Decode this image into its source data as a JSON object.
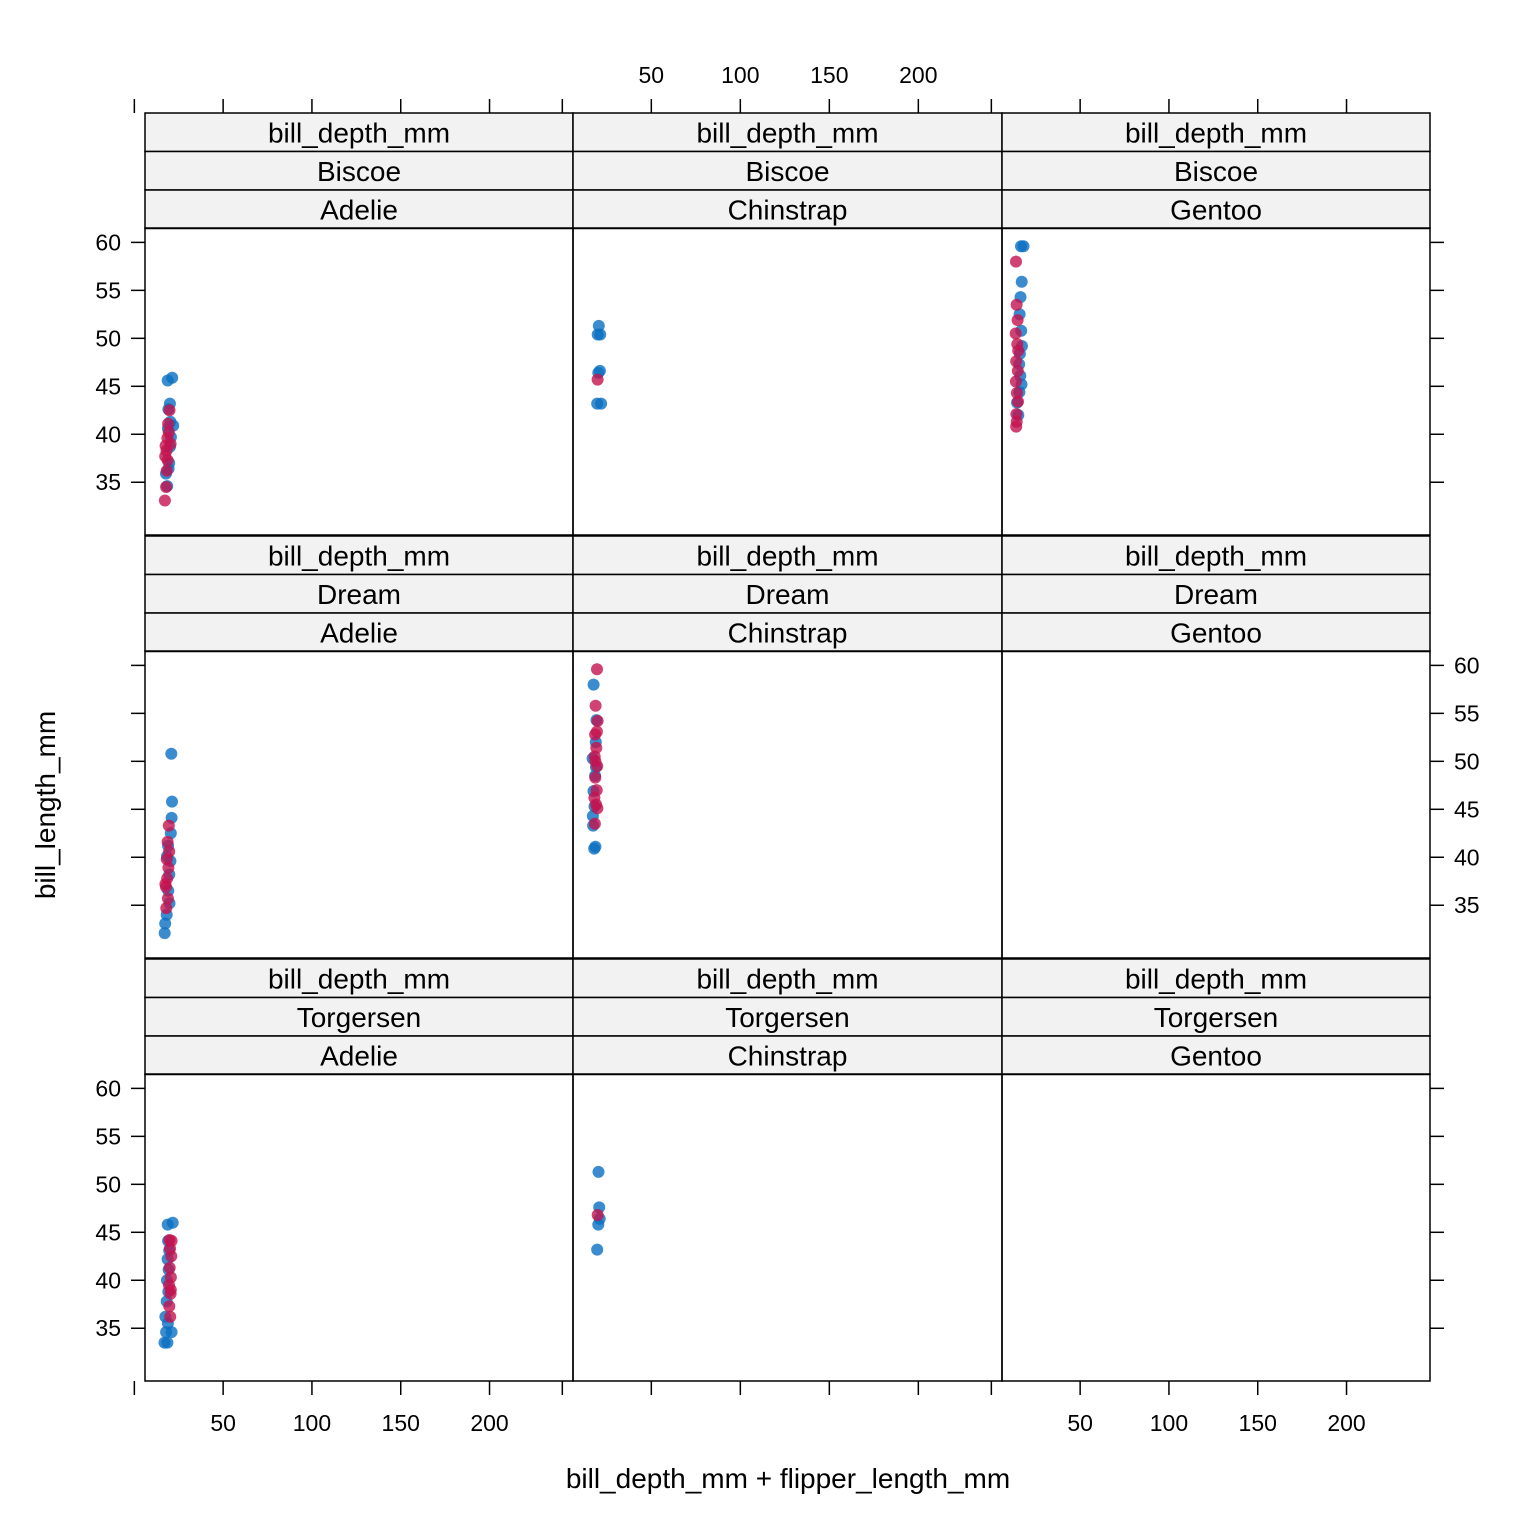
{
  "chart_data": {
    "type": "scatter",
    "xlabel": "bill_depth_mm + flipper_length_mm",
    "ylabel": "bill_length_mm",
    "x_ticks": [
      50,
      100,
      150,
      200
    ],
    "y_ticks": [
      35,
      40,
      45,
      50,
      55,
      60
    ],
    "xlim": [
      6,
      247
    ],
    "ylim": [
      29.5,
      61.5
    ],
    "strip_variable": "bill_depth_mm",
    "colors": {
      "female": "#C4134F",
      "male": "#0A6FC2",
      "strip_bg": "#F2F2F2"
    },
    "panels": [
      {
        "island": "Biscoe",
        "species": "Adelie",
        "points": [
          [
            18.5,
            34.6,
            "m"
          ],
          [
            17.8,
            35.9,
            "m"
          ],
          [
            19.6,
            37.0,
            "m"
          ],
          [
            20.1,
            38.7,
            "m"
          ],
          [
            18.9,
            40.6,
            "m"
          ],
          [
            20.3,
            41.3,
            "m"
          ],
          [
            19.2,
            42.6,
            "m"
          ],
          [
            20.0,
            43.2,
            "m"
          ],
          [
            18.8,
            45.6,
            "m"
          ],
          [
            21.3,
            45.9,
            "m"
          ],
          [
            21.9,
            40.9,
            "m"
          ],
          [
            20.6,
            39.7,
            "m"
          ],
          [
            19.3,
            36.4,
            "m"
          ],
          [
            17.2,
            33.1,
            "f"
          ],
          [
            17.9,
            34.5,
            "f"
          ],
          [
            18.3,
            36.2,
            "f"
          ],
          [
            17.4,
            37.7,
            "f"
          ],
          [
            18.1,
            38.3,
            "f"
          ],
          [
            18.6,
            39.6,
            "f"
          ],
          [
            19.4,
            40.2,
            "f"
          ],
          [
            19.0,
            41.1,
            "f"
          ],
          [
            19.8,
            42.5,
            "f"
          ],
          [
            20.4,
            39.0,
            "f"
          ],
          [
            18.7,
            37.3,
            "f"
          ],
          [
            17.6,
            38.8,
            "f"
          ]
        ]
      },
      {
        "island": "Biscoe",
        "species": "Chinstrap",
        "points": [
          [
            19.6,
            43.2,
            "m"
          ],
          [
            21.8,
            43.2,
            "m"
          ],
          [
            20.2,
            46.4,
            "m"
          ],
          [
            21.1,
            46.6,
            "m"
          ],
          [
            19.9,
            50.4,
            "m"
          ],
          [
            21.3,
            50.4,
            "m"
          ],
          [
            20.5,
            51.3,
            "m"
          ],
          [
            19.8,
            45.7,
            "f"
          ]
        ]
      },
      {
        "island": "Biscoe",
        "species": "Gentoo",
        "points": [
          [
            16.7,
            59.6,
            "m"
          ],
          [
            18.1,
            59.6,
            "m"
          ],
          [
            17.1,
            55.9,
            "m"
          ],
          [
            16.4,
            54.3,
            "m"
          ],
          [
            15.9,
            52.5,
            "m"
          ],
          [
            16.8,
            50.8,
            "m"
          ],
          [
            17.2,
            49.2,
            "m"
          ],
          [
            16.1,
            48.4,
            "m"
          ],
          [
            15.7,
            47.3,
            "m"
          ],
          [
            16.3,
            46.1,
            "m"
          ],
          [
            17.0,
            45.2,
            "m"
          ],
          [
            15.8,
            44.4,
            "m"
          ],
          [
            14.5,
            43.3,
            "m"
          ],
          [
            15.2,
            42.0,
            "m"
          ],
          [
            13.9,
            58.0,
            "f"
          ],
          [
            14.2,
            53.5,
            "f"
          ],
          [
            14.8,
            51.9,
            "f"
          ],
          [
            13.7,
            50.5,
            "f"
          ],
          [
            14.6,
            49.4,
            "f"
          ],
          [
            15.1,
            48.7,
            "f"
          ],
          [
            14.0,
            47.6,
            "f"
          ],
          [
            14.9,
            46.6,
            "f"
          ],
          [
            13.8,
            45.5,
            "f"
          ],
          [
            14.4,
            44.3,
            "f"
          ],
          [
            15.0,
            43.4,
            "f"
          ],
          [
            14.1,
            42.1,
            "f"
          ],
          [
            14.3,
            41.3,
            "f"
          ],
          [
            14.0,
            40.8,
            "f"
          ]
        ]
      },
      {
        "island": "Dream",
        "species": "Adelie",
        "points": [
          [
            17.1,
            32.1,
            "m"
          ],
          [
            17.4,
            33.1,
            "m"
          ],
          [
            18.2,
            34.0,
            "m"
          ],
          [
            19.1,
            36.5,
            "m"
          ],
          [
            19.7,
            38.2,
            "m"
          ],
          [
            20.3,
            39.6,
            "m"
          ],
          [
            19.0,
            41.2,
            "m"
          ],
          [
            20.5,
            42.5,
            "m"
          ],
          [
            21.0,
            44.1,
            "m"
          ],
          [
            21.2,
            45.8,
            "m"
          ],
          [
            20.8,
            50.8,
            "m"
          ],
          [
            18.4,
            40.1,
            "m"
          ],
          [
            19.8,
            35.2,
            "m"
          ],
          [
            18.0,
            34.7,
            "f"
          ],
          [
            18.9,
            35.7,
            "f"
          ],
          [
            17.8,
            36.9,
            "f"
          ],
          [
            18.5,
            37.8,
            "f"
          ],
          [
            19.2,
            38.9,
            "f"
          ],
          [
            18.3,
            39.8,
            "f"
          ],
          [
            19.6,
            40.6,
            "f"
          ],
          [
            18.7,
            41.6,
            "f"
          ],
          [
            19.4,
            43.3,
            "f"
          ],
          [
            17.5,
            37.2,
            "f"
          ]
        ]
      },
      {
        "island": "Dream",
        "species": "Chinstrap",
        "points": [
          [
            17.9,
            40.9,
            "m"
          ],
          [
            18.6,
            41.1,
            "m"
          ],
          [
            17.3,
            43.3,
            "m"
          ],
          [
            18.1,
            45.3,
            "m"
          ],
          [
            17.5,
            46.9,
            "m"
          ],
          [
            18.4,
            48.5,
            "m"
          ],
          [
            17.0,
            50.3,
            "m"
          ],
          [
            18.8,
            52.0,
            "m"
          ],
          [
            19.2,
            54.3,
            "m"
          ],
          [
            17.6,
            58.0,
            "m"
          ],
          [
            18.9,
            49.4,
            "m"
          ],
          [
            17.2,
            44.3,
            "m"
          ],
          [
            19.5,
            59.6,
            "f"
          ],
          [
            18.7,
            55.8,
            "f"
          ],
          [
            19.8,
            54.2,
            "f"
          ],
          [
            18.4,
            52.8,
            "f"
          ],
          [
            19.1,
            51.4,
            "f"
          ],
          [
            18.2,
            50.5,
            "f"
          ],
          [
            19.6,
            49.5,
            "f"
          ],
          [
            18.5,
            48.3,
            "f"
          ],
          [
            19.3,
            47.0,
            "f"
          ],
          [
            18.0,
            46.2,
            "f"
          ],
          [
            19.0,
            45.5,
            "f"
          ],
          [
            18.3,
            43.5,
            "f"
          ],
          [
            19.7,
            45.1,
            "f"
          ],
          [
            18.6,
            50.0,
            "f"
          ],
          [
            19.4,
            53.1,
            "f"
          ]
        ]
      },
      {
        "island": "Dream",
        "species": "Gentoo",
        "points": []
      },
      {
        "island": "Torgersen",
        "species": "Adelie",
        "points": [
          [
            17.0,
            33.5,
            "m"
          ],
          [
            18.6,
            33.5,
            "m"
          ],
          [
            17.9,
            34.6,
            "m"
          ],
          [
            18.9,
            35.5,
            "m"
          ],
          [
            17.5,
            36.2,
            "m"
          ],
          [
            18.2,
            37.8,
            "m"
          ],
          [
            19.1,
            38.8,
            "m"
          ],
          [
            18.4,
            40.0,
            "m"
          ],
          [
            19.3,
            41.1,
            "m"
          ],
          [
            18.7,
            42.2,
            "m"
          ],
          [
            19.6,
            43.1,
            "m"
          ],
          [
            19.0,
            44.1,
            "m"
          ],
          [
            18.8,
            45.8,
            "m"
          ],
          [
            21.6,
            46.0,
            "m"
          ],
          [
            20.9,
            34.6,
            "m"
          ],
          [
            20.2,
            36.2,
            "f"
          ],
          [
            19.7,
            37.3,
            "f"
          ],
          [
            20.4,
            38.6,
            "f"
          ],
          [
            19.5,
            39.5,
            "f"
          ],
          [
            20.6,
            40.3,
            "f"
          ],
          [
            19.9,
            41.3,
            "f"
          ],
          [
            20.8,
            42.5,
            "f"
          ],
          [
            20.1,
            43.3,
            "f"
          ],
          [
            19.8,
            44.2,
            "f"
          ],
          [
            21.0,
            44.1,
            "f"
          ],
          [
            20.5,
            39.0,
            "f"
          ]
        ]
      },
      {
        "island": "Torgersen",
        "species": "Chinstrap",
        "points": [
          [
            19.6,
            43.2,
            "m"
          ],
          [
            20.2,
            45.8,
            "m"
          ],
          [
            21.0,
            46.4,
            "m"
          ],
          [
            20.7,
            47.6,
            "m"
          ],
          [
            20.3,
            51.3,
            "m"
          ],
          [
            19.9,
            46.8,
            "f"
          ]
        ]
      },
      {
        "island": "Torgersen",
        "species": "Gentoo",
        "points": []
      }
    ]
  }
}
